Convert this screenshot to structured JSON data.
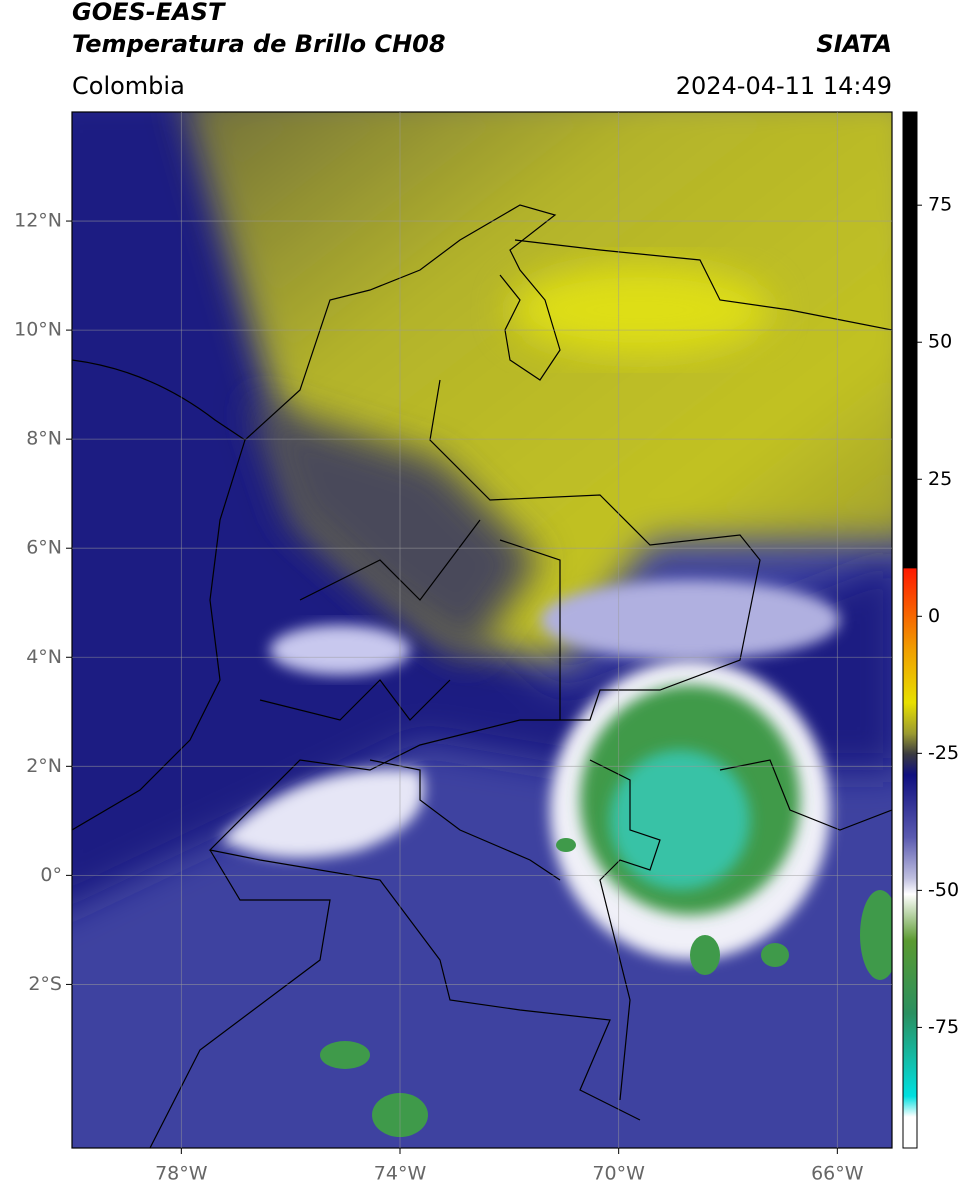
{
  "header": {
    "title": "GOES-EAST",
    "subtitle": "Temperatura de Brillo CH08",
    "source": "SIATA",
    "region": "Colombia",
    "datetime": "2024-04-11 14:49"
  },
  "map": {
    "xlim": [
      -80,
      -65
    ],
    "ylim": [
      -5,
      14
    ],
    "xticks": [
      {
        "value": -78,
        "label": "78°W"
      },
      {
        "value": -74,
        "label": "74°W"
      },
      {
        "value": -70,
        "label": "70°W"
      },
      {
        "value": -66,
        "label": "66°W"
      }
    ],
    "yticks": [
      {
        "value": -2,
        "label": "2°S"
      },
      {
        "value": 0,
        "label": "0°"
      },
      {
        "value": 2,
        "label": "2°N"
      },
      {
        "value": 4,
        "label": "4°N"
      },
      {
        "value": 6,
        "label": "6°N"
      },
      {
        "value": 8,
        "label": "8°N"
      },
      {
        "value": 10,
        "label": "10°N"
      },
      {
        "value": 12,
        "label": "12°N"
      }
    ]
  },
  "colorbar": {
    "lim": [
      -97,
      92
    ],
    "ticks": [
      -75,
      -50,
      -25,
      0,
      25,
      50,
      75
    ]
  }
}
